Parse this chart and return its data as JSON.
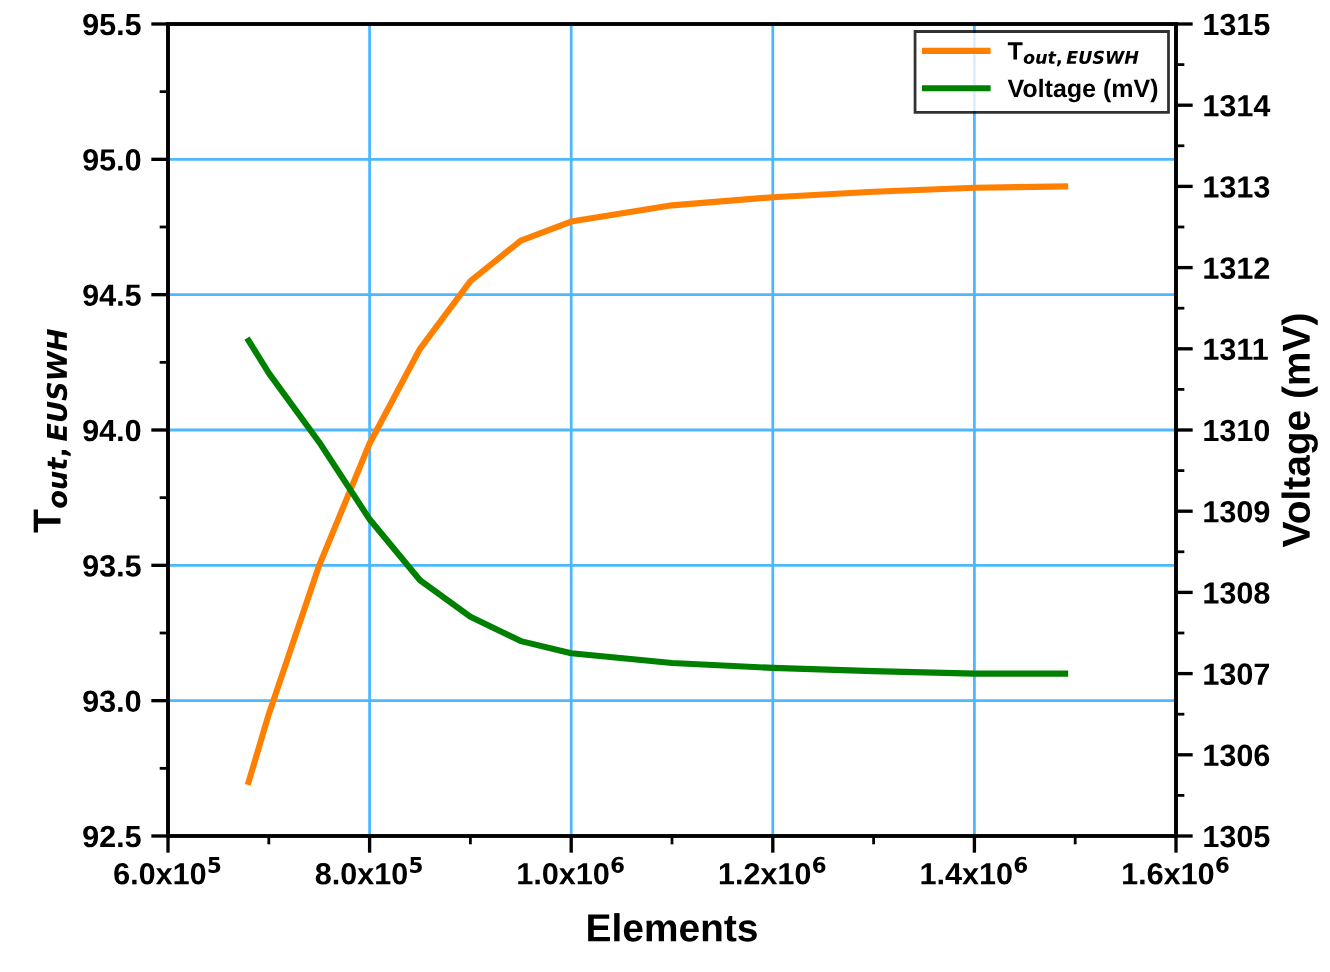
{
  "chart_data": {
    "type": "line",
    "xlabel": "Elements",
    "ylabel": "T$_{out,EUSWH}$",
    "y2label": "Voltage (mV)",
    "xlim": [
      600000,
      1600000
    ],
    "xticks": [
      {
        "value": 600000,
        "label": "6.0x10$^{5}$"
      },
      {
        "value": 800000,
        "label": "8.0x10$^{5}$"
      },
      {
        "value": 1000000,
        "label": "1.0x10$^{6}$"
      },
      {
        "value": 1200000,
        "label": "1.2x10$^{6}$"
      },
      {
        "value": 1400000,
        "label": "1.4x10$^{6}$"
      },
      {
        "value": 1600000,
        "label": "1.6x10$^{6}$"
      }
    ],
    "ylim": [
      92.5,
      95.5
    ],
    "yticks": [
      {
        "value": 92.5,
        "label": "92.5"
      },
      {
        "value": 93.0,
        "label": "93.0"
      },
      {
        "value": 93.5,
        "label": "93.5"
      },
      {
        "value": 94.0,
        "label": "94.0"
      },
      {
        "value": 94.5,
        "label": "94.5"
      },
      {
        "value": 95.0,
        "label": "95.0"
      },
      {
        "value": 95.5,
        "label": "95.5"
      }
    ],
    "y2lim": [
      1305,
      1315
    ],
    "y2ticks": [
      1305,
      1306,
      1307,
      1308,
      1309,
      1310,
      1311,
      1312,
      1313,
      1314,
      1315
    ],
    "grid": true,
    "legend": "top right",
    "series": [
      {
        "name": "T$_{out,EUSWH}$",
        "color": "#ff8000",
        "x": [
          680000,
          700000,
          750000,
          800000,
          850000,
          900000,
          950000,
          1000000,
          1100000,
          1200000,
          1300000,
          1400000,
          1490000
        ],
        "values": [
          92.7,
          92.95,
          93.5,
          93.95,
          94.3,
          94.55,
          94.7,
          94.77,
          94.83,
          94.86,
          94.88,
          94.895,
          94.9
        ]
      },
      {
        "name": "Voltage (mV)",
        "color": "#008000",
        "axis": "y2",
        "x": [
          680000,
          700000,
          750000,
          800000,
          850000,
          900000,
          950000,
          1000000,
          1100000,
          1200000,
          1300000,
          1400000,
          1490000
        ],
        "values": [
          1311.1,
          1310.7,
          1309.85,
          1308.9,
          1308.15,
          1307.7,
          1307.4,
          1307.25,
          1307.13,
          1307.07,
          1307.03,
          1307.0,
          1307.0
        ]
      }
    ]
  }
}
